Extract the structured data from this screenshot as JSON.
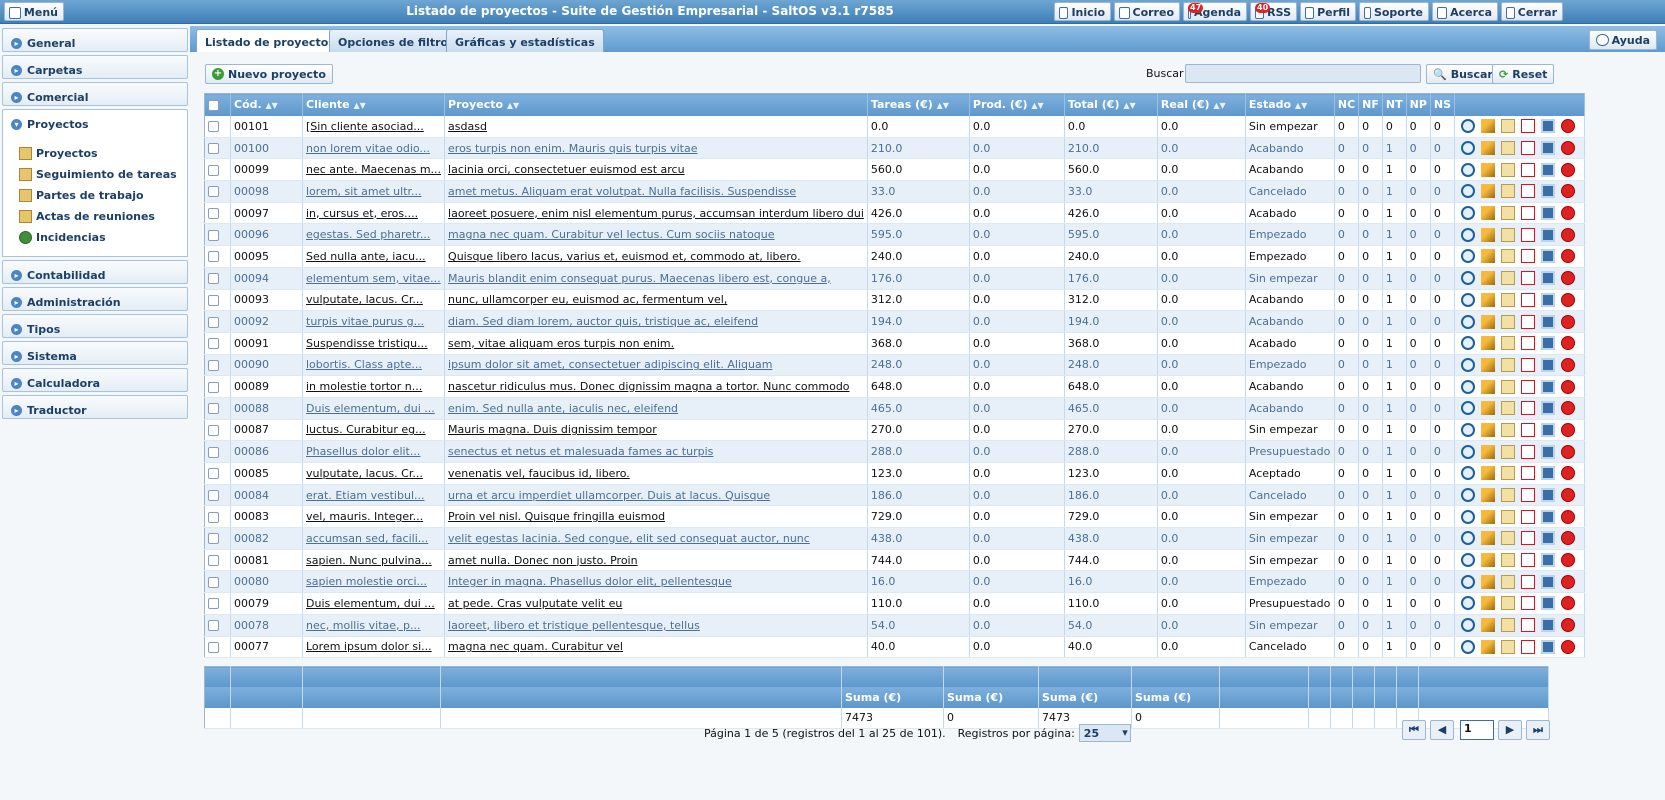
{
  "topbar": {
    "menu_label": "Menú",
    "title": "Listado de proyectos - Suite de Gestión Empresarial - SaltOS v3.1 r7585",
    "buttons": [
      {
        "label": "Inicio"
      },
      {
        "label": "Correo"
      },
      {
        "label": "Agenda",
        "badge": "47"
      },
      {
        "label": "RSS",
        "badge": "40"
      },
      {
        "label": "Perfil"
      },
      {
        "label": "Soporte"
      },
      {
        "label": "Acerca"
      },
      {
        "label": "Cerrar"
      }
    ]
  },
  "sidebar": {
    "groups_top": [
      "General",
      "Carpetas",
      "Comercial"
    ],
    "open_group": "Proyectos",
    "sub_items": [
      "Proyectos",
      "Seguimiento de tareas",
      "Partes de trabajo",
      "Actas de reuniones",
      "Incidencias"
    ],
    "groups_bottom": [
      "Contabilidad",
      "Administración",
      "Tipos",
      "Sistema",
      "Calculadora",
      "Traductor"
    ]
  },
  "tabs": [
    "Listado de proyectos",
    "Opciones de filtro",
    "Gráficas y estadísticas"
  ],
  "help_label": "Ayuda",
  "toolbar": {
    "new_label": "Nuevo proyecto",
    "search_label": "Buscar",
    "search_button": "Buscar",
    "reset_button": "Reset"
  },
  "columns": [
    "Cód.",
    "Cliente",
    "Proyecto",
    "Tareas (€)",
    "Prod. (€)",
    "Total (€)",
    "Real (€)",
    "Estado",
    "NC",
    "NF",
    "NT",
    "NP",
    "NS"
  ],
  "rows": [
    [
      "00101",
      "[Sin cliente asociad...",
      "asdasd",
      "0.0",
      "0.0",
      "0.0",
      "0.0",
      "Sin empezar",
      "0",
      "0",
      "0",
      "0",
      "0"
    ],
    [
      "00100",
      "non lorem vitae odio...",
      "eros turpis non enim. Mauris quis turpis vitae",
      "210.0",
      "0.0",
      "210.0",
      "0.0",
      "Acabando",
      "0",
      "0",
      "1",
      "0",
      "0"
    ],
    [
      "00099",
      "nec ante. Maecenas m...",
      "lacinia orci, consectetuer euismod est arcu",
      "560.0",
      "0.0",
      "560.0",
      "0.0",
      "Acabando",
      "0",
      "0",
      "1",
      "0",
      "0"
    ],
    [
      "00098",
      "lorem, sit amet ultr...",
      "amet metus. Aliquam erat volutpat. Nulla facilisis. Suspendisse",
      "33.0",
      "0.0",
      "33.0",
      "0.0",
      "Cancelado",
      "0",
      "0",
      "1",
      "0",
      "0"
    ],
    [
      "00097",
      "in, cursus et, eros....",
      "laoreet posuere, enim nisl elementum purus, accumsan interdum libero dui",
      "426.0",
      "0.0",
      "426.0",
      "0.0",
      "Acabado",
      "0",
      "0",
      "1",
      "0",
      "0"
    ],
    [
      "00096",
      "egestas. Sed pharetr...",
      "magna nec quam. Curabitur vel lectus. Cum sociis natoque",
      "595.0",
      "0.0",
      "595.0",
      "0.0",
      "Empezado",
      "0",
      "0",
      "1",
      "0",
      "0"
    ],
    [
      "00095",
      "Sed nulla ante, iacu...",
      "Quisque libero lacus, varius et, euismod et, commodo at, libero.",
      "240.0",
      "0.0",
      "240.0",
      "0.0",
      "Empezado",
      "0",
      "0",
      "1",
      "0",
      "0"
    ],
    [
      "00094",
      "elementum sem, vitae...",
      "Mauris blandit enim consequat purus. Maecenas libero est, congue a,",
      "176.0",
      "0.0",
      "176.0",
      "0.0",
      "Sin empezar",
      "0",
      "0",
      "1",
      "0",
      "0"
    ],
    [
      "00093",
      "vulputate, lacus. Cr...",
      "nunc, ullamcorper eu, euismod ac, fermentum vel,",
      "312.0",
      "0.0",
      "312.0",
      "0.0",
      "Acabando",
      "0",
      "0",
      "1",
      "0",
      "0"
    ],
    [
      "00092",
      "turpis vitae purus g...",
      "diam. Sed diam lorem, auctor quis, tristique ac, eleifend",
      "194.0",
      "0.0",
      "194.0",
      "0.0",
      "Acabando",
      "0",
      "0",
      "1",
      "0",
      "0"
    ],
    [
      "00091",
      "Suspendisse tristiqu...",
      "sem, vitae aliquam eros turpis non enim.",
      "368.0",
      "0.0",
      "368.0",
      "0.0",
      "Acabado",
      "0",
      "0",
      "1",
      "0",
      "0"
    ],
    [
      "00090",
      "lobortis. Class apte...",
      "ipsum dolor sit amet, consectetuer adipiscing elit. Aliquam",
      "248.0",
      "0.0",
      "248.0",
      "0.0",
      "Empezado",
      "0",
      "0",
      "1",
      "0",
      "0"
    ],
    [
      "00089",
      "in molestie tortor n...",
      "nascetur ridiculus mus. Donec dignissim magna a tortor. Nunc commodo",
      "648.0",
      "0.0",
      "648.0",
      "0.0",
      "Acabando",
      "0",
      "0",
      "1",
      "0",
      "0"
    ],
    [
      "00088",
      "Duis elementum, dui ...",
      "enim. Sed nulla ante, iaculis nec, eleifend",
      "465.0",
      "0.0",
      "465.0",
      "0.0",
      "Acabando",
      "0",
      "0",
      "1",
      "0",
      "0"
    ],
    [
      "00087",
      "luctus. Curabitur eg...",
      "Mauris magna. Duis dignissim tempor",
      "270.0",
      "0.0",
      "270.0",
      "0.0",
      "Sin empezar",
      "0",
      "0",
      "1",
      "0",
      "0"
    ],
    [
      "00086",
      "Phasellus dolor elit...",
      "senectus et netus et malesuada fames ac turpis",
      "288.0",
      "0.0",
      "288.0",
      "0.0",
      "Presupuestado",
      "0",
      "0",
      "1",
      "0",
      "0"
    ],
    [
      "00085",
      "vulputate, lacus. Cr...",
      "venenatis vel, faucibus id, libero.",
      "123.0",
      "0.0",
      "123.0",
      "0.0",
      "Aceptado",
      "0",
      "0",
      "1",
      "0",
      "0"
    ],
    [
      "00084",
      "erat. Etiam vestibul...",
      "urna et arcu imperdiet ullamcorper. Duis at lacus. Quisque",
      "186.0",
      "0.0",
      "186.0",
      "0.0",
      "Cancelado",
      "0",
      "0",
      "1",
      "0",
      "0"
    ],
    [
      "00083",
      "vel, mauris. Integer...",
      "Proin vel nisl. Quisque fringilla euismod",
      "729.0",
      "0.0",
      "729.0",
      "0.0",
      "Sin empezar",
      "0",
      "0",
      "1",
      "0",
      "0"
    ],
    [
      "00082",
      "accumsan sed, facili...",
      "velit egestas lacinia. Sed congue, elit sed consequat auctor, nunc",
      "438.0",
      "0.0",
      "438.0",
      "0.0",
      "Sin empezar",
      "0",
      "0",
      "1",
      "0",
      "0"
    ],
    [
      "00081",
      "sapien. Nunc pulvina...",
      "amet nulla. Donec non justo. Proin",
      "744.0",
      "0.0",
      "744.0",
      "0.0",
      "Sin empezar",
      "0",
      "0",
      "1",
      "0",
      "0"
    ],
    [
      "00080",
      "sapien molestie orci...",
      "Integer in magna. Phasellus dolor elit, pellentesque",
      "16.0",
      "0.0",
      "16.0",
      "0.0",
      "Empezado",
      "0",
      "0",
      "1",
      "0",
      "0"
    ],
    [
      "00079",
      "Duis elementum, dui ...",
      "at pede. Cras vulputate velit eu",
      "110.0",
      "0.0",
      "110.0",
      "0.0",
      "Presupuestado",
      "0",
      "0",
      "1",
      "0",
      "0"
    ],
    [
      "00078",
      "nec, mollis vitae, p...",
      "laoreet, libero et tristique pellentesque, tellus",
      "54.0",
      "0.0",
      "54.0",
      "0.0",
      "Sin empezar",
      "0",
      "0",
      "1",
      "0",
      "0"
    ],
    [
      "00077",
      "Lorem ipsum dolor si...",
      "magna nec quam. Curabitur vel",
      "40.0",
      "0.0",
      "40.0",
      "0.0",
      "Cancelado",
      "0",
      "0",
      "1",
      "0",
      "0"
    ]
  ],
  "summary": {
    "label": "Suma (€)",
    "tareas": "7473",
    "prod": "0",
    "total": "7473",
    "real": "0"
  },
  "pager": {
    "text": "Página 1 de 5 (registros del 1 al 25 de 101).",
    "per_page_label": "Registros por página:",
    "per_page": "25",
    "page": "1"
  }
}
